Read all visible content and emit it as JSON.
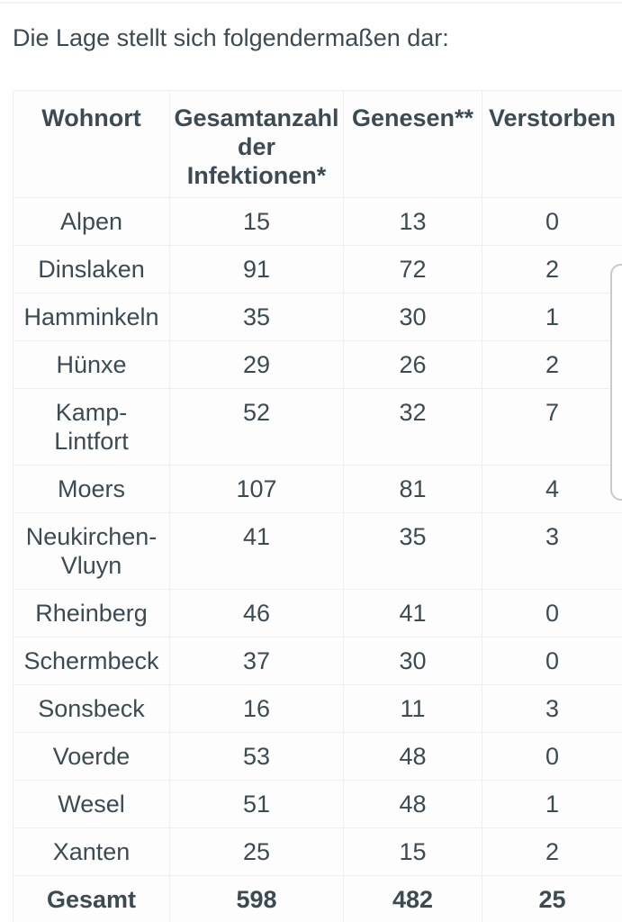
{
  "theme": {
    "text": "#3C4B53",
    "grid": "#EFEFEF",
    "background": "#FFFFFF",
    "thumb-border": "#C9C9C9"
  },
  "intro": {
    "text": "Die Lage stellt sich folgendermaßen dar:"
  },
  "table": {
    "headers": [
      "Wohnort",
      "Gesamtanzahl der Infektionen*",
      "Genesen**",
      "Verstorben"
    ],
    "rows": [
      {
        "ort": "Alpen",
        "infektionen": "15",
        "genesen": "13",
        "verstorben": "0"
      },
      {
        "ort": "Dinslaken",
        "infektionen": "91",
        "genesen": "72",
        "verstorben": "2"
      },
      {
        "ort": "Hamminkeln",
        "infektionen": "35",
        "genesen": "30",
        "verstorben": "1"
      },
      {
        "ort": "Hünxe",
        "infektionen": "29",
        "genesen": "26",
        "verstorben": "2"
      },
      {
        "ort": "Kamp-Lintfort",
        "infektionen": "52",
        "genesen": "32",
        "verstorben": "7"
      },
      {
        "ort": "Moers",
        "infektionen": "107",
        "genesen": "81",
        "verstorben": "4"
      },
      {
        "ort": "Neukirchen-Vluyn",
        "infektionen": "41",
        "genesen": "35",
        "verstorben": "3"
      },
      {
        "ort": "Rheinberg",
        "infektionen": "46",
        "genesen": "41",
        "verstorben": "0"
      },
      {
        "ort": "Schermbeck",
        "infektionen": "37",
        "genesen": "30",
        "verstorben": "0"
      },
      {
        "ort": "Sonsbeck",
        "infektionen": "16",
        "genesen": "11",
        "verstorben": "3"
      },
      {
        "ort": "Voerde",
        "infektionen": "53",
        "genesen": "48",
        "verstorben": "0"
      },
      {
        "ort": "Wesel",
        "infektionen": "51",
        "genesen": "48",
        "verstorben": "1"
      },
      {
        "ort": "Xanten",
        "infektionen": "25",
        "genesen": "15",
        "verstorben": "2"
      }
    ],
    "total": {
      "ort": "Gesamt",
      "infektionen": "598",
      "genesen": "482",
      "verstorben": "25"
    }
  }
}
